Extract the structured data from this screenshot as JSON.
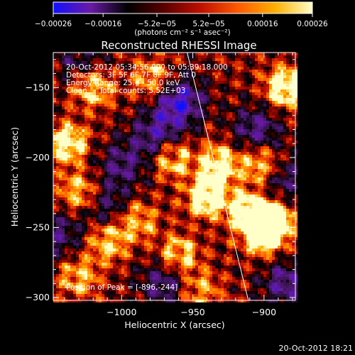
{
  "chart_data": {
    "type": "heatmap",
    "title": "Reconstructed RHESSI Image",
    "xlabel": "Heliocentric X (arcsec)",
    "ylabel": "Heliocentric Y (arcsec)",
    "xlim": [
      -1048,
      -878
    ],
    "ylim": [
      -302,
      -125
    ],
    "x_ticks": [
      -1000,
      -950,
      -900
    ],
    "x_tick_labels": [
      "−1000",
      "−950",
      "−900"
    ],
    "y_ticks": [
      -150,
      -200,
      -250,
      -300
    ],
    "y_tick_labels": [
      "−150",
      "−200",
      "−250",
      "−300"
    ],
    "colorbar": {
      "range": [
        -0.00026,
        0.00026
      ],
      "ticks": [
        -0.00026,
        -0.00016,
        -5.2e-05,
        5.2e-05,
        0.00016,
        0.00026
      ],
      "tick_labels": [
        "−0.00026",
        "−0.00016",
        "−5.2e−05",
        "5.2e−05",
        "0.00016",
        "0.00026"
      ],
      "units_label": "(photons cm⁻² s⁻¹ asec⁻²)",
      "colors": [
        "#1010ff",
        "#6a1aa8",
        "#000000",
        "#5a0000",
        "#c01000",
        "#ff5a00",
        "#ffb000",
        "#ffffc8"
      ]
    },
    "annotations": [
      "20-Oct-2012 05:34:56.000 to 05:39:18.000",
      "Detectors: 3F 5F 6F 7F 8F 9F, Att 0",
      "Energy Range: 25.0 - 50.0 keV",
      "Clean     Total counts: 5.52E+03"
    ],
    "peak_label": "Position of Peak = [-896,-244]",
    "peak": [
      -896,
      -244
    ],
    "limb_line": [
      [
        -954,
        -125
      ],
      [
        -911,
        -302
      ]
    ],
    "bright_regions": [
      {
        "x": -895,
        "y": -245,
        "intensity": 1.0
      },
      {
        "x": -900,
        "y": -255,
        "intensity": 0.9
      },
      {
        "x": -912,
        "y": -238,
        "intensity": 0.8
      },
      {
        "x": -940,
        "y": -228,
        "intensity": 0.9
      },
      {
        "x": -932,
        "y": -205,
        "intensity": 0.75
      },
      {
        "x": -902,
        "y": -205,
        "intensity": 0.75
      },
      {
        "x": -885,
        "y": -150,
        "intensity": 0.9
      },
      {
        "x": -965,
        "y": -200,
        "intensity": 0.7
      },
      {
        "x": -978,
        "y": -145,
        "intensity": 0.6
      },
      {
        "x": -1020,
        "y": -150,
        "intensity": 0.65
      },
      {
        "x": -1038,
        "y": -190,
        "intensity": 0.8
      },
      {
        "x": -1030,
        "y": -225,
        "intensity": 0.6
      },
      {
        "x": -1010,
        "y": -260,
        "intensity": 0.6
      },
      {
        "x": -990,
        "y": -245,
        "intensity": 0.55
      },
      {
        "x": -960,
        "y": -270,
        "intensity": 0.65
      },
      {
        "x": -945,
        "y": -295,
        "intensity": 0.5
      },
      {
        "x": -1030,
        "y": -285,
        "intensity": 0.55
      }
    ],
    "dark_regions": [
      {
        "x": -960,
        "y": -160,
        "intensity": 0.8
      },
      {
        "x": -975,
        "y": -185,
        "intensity": 0.6
      },
      {
        "x": -905,
        "y": -180,
        "intensity": 0.55
      },
      {
        "x": -888,
        "y": -215,
        "intensity": 0.45
      },
      {
        "x": -1000,
        "y": -205,
        "intensity": 0.45
      },
      {
        "x": -1010,
        "y": -235,
        "intensity": 0.4
      },
      {
        "x": -970,
        "y": -290,
        "intensity": 0.5
      },
      {
        "x": -1045,
        "y": -255,
        "intensity": 0.45
      },
      {
        "x": -885,
        "y": -290,
        "intensity": 0.55
      },
      {
        "x": -1030,
        "y": -130,
        "intensity": 0.35
      }
    ]
  },
  "footer": {
    "timestamp": "20-Oct-2012 18:21"
  }
}
